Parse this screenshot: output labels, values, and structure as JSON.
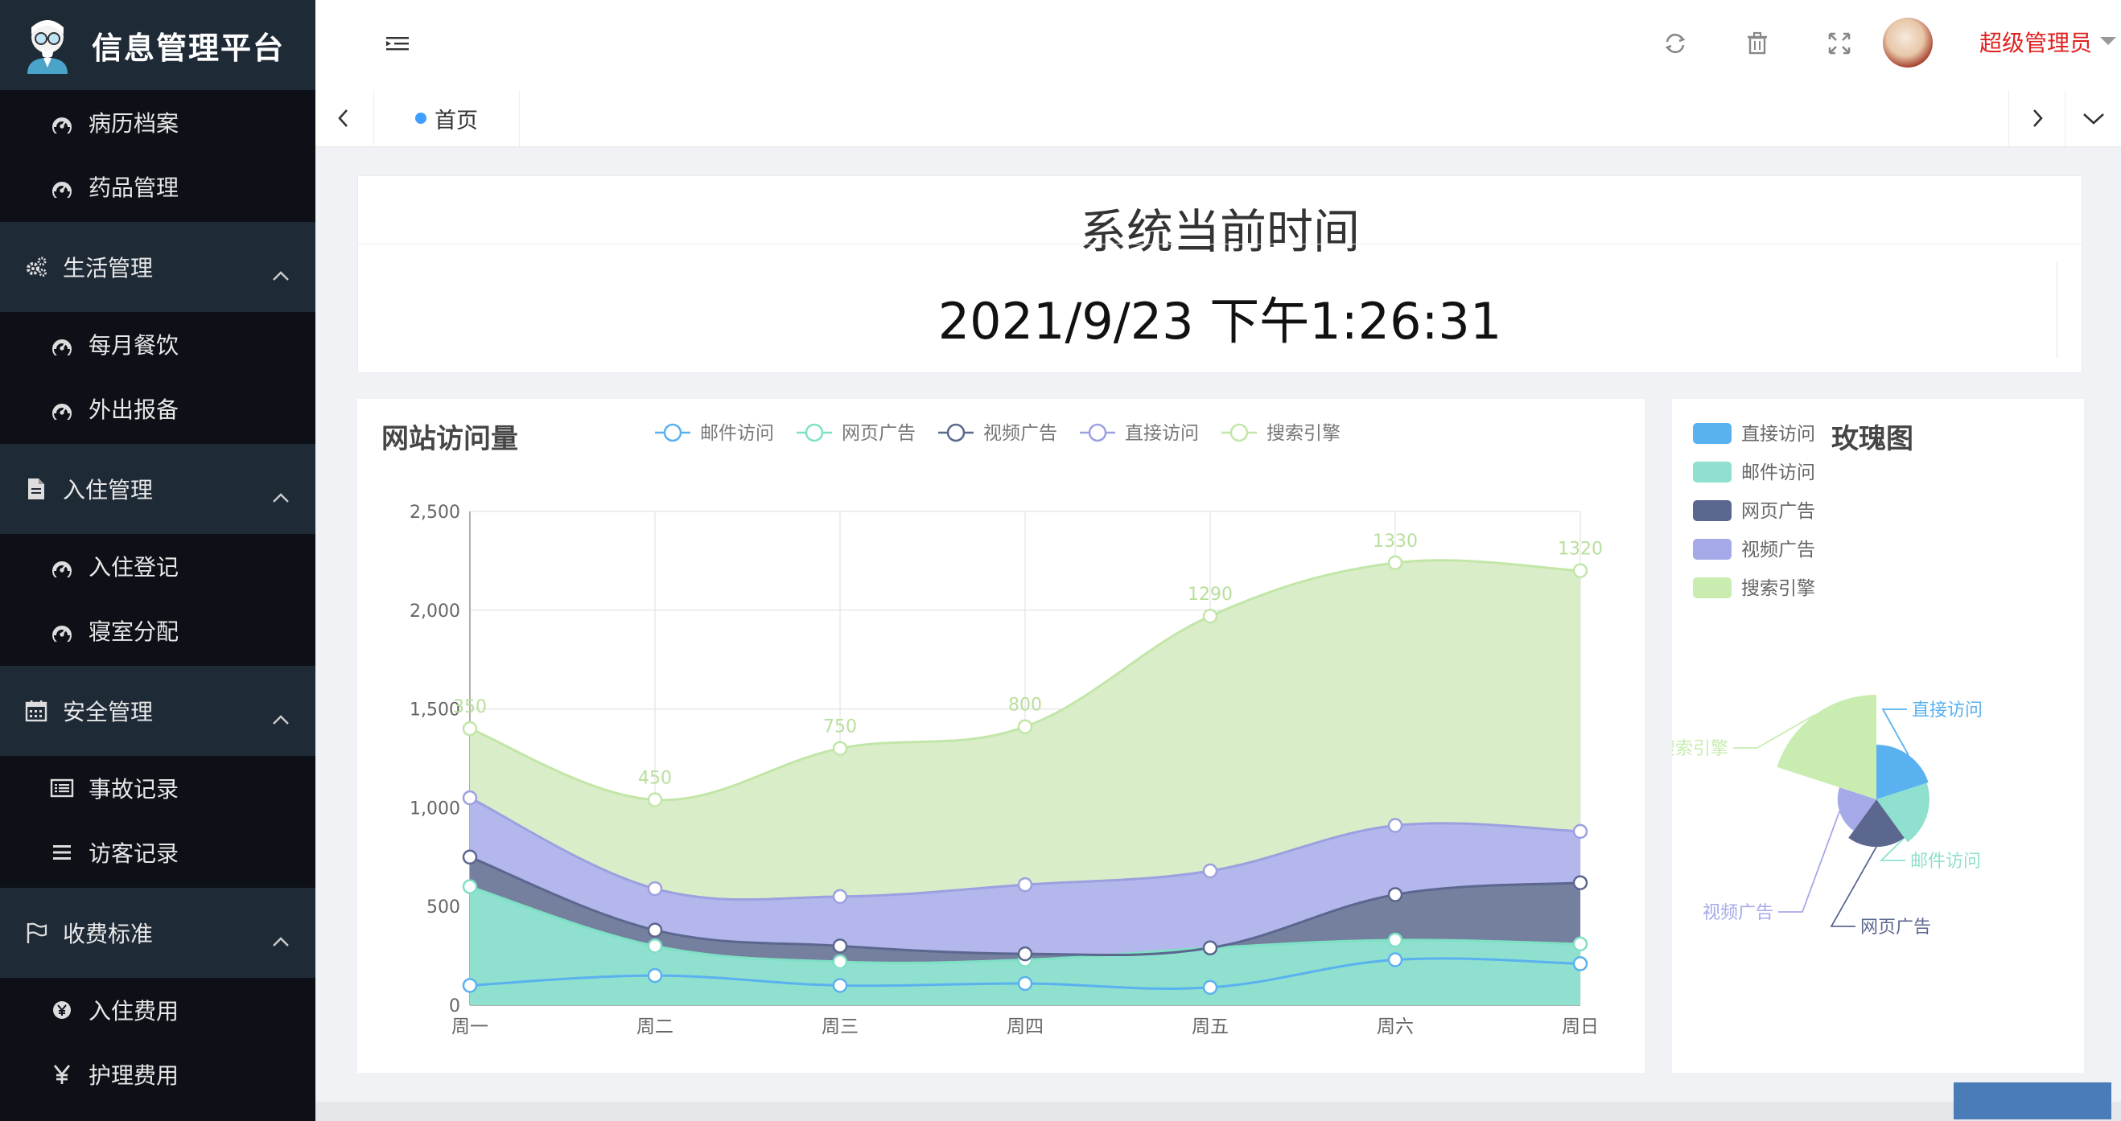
{
  "app": {
    "title": "信息管理平台"
  },
  "sidebar": {
    "items": [
      {
        "label": "病历档案",
        "kind": "sub",
        "icon": "dashboard-icon"
      },
      {
        "label": "药品管理",
        "kind": "sub",
        "icon": "dashboard-icon"
      },
      {
        "label": "生活管理",
        "kind": "group",
        "icon": "gears-icon"
      },
      {
        "label": "每月餐饮",
        "kind": "sub",
        "icon": "dashboard-icon"
      },
      {
        "label": "外出报备",
        "kind": "sub",
        "icon": "dashboard-icon"
      },
      {
        "label": "入住管理",
        "kind": "group",
        "icon": "file-icon"
      },
      {
        "label": "入住登记",
        "kind": "sub",
        "icon": "dashboard-icon"
      },
      {
        "label": "寝室分配",
        "kind": "sub",
        "icon": "dashboard-icon"
      },
      {
        "label": "安全管理",
        "kind": "group",
        "icon": "calendar-icon"
      },
      {
        "label": "事故记录",
        "kind": "sub",
        "icon": "list-alt-icon"
      },
      {
        "label": "访客记录",
        "kind": "sub",
        "icon": "bars-icon"
      },
      {
        "label": "收费标准",
        "kind": "group",
        "icon": "flag-icon"
      },
      {
        "label": "入住费用",
        "kind": "sub",
        "icon": "yen-circle-icon"
      },
      {
        "label": "护理费用",
        "kind": "sub",
        "icon": "yen-icon"
      }
    ]
  },
  "header": {
    "user_name": "超级管理员",
    "icons": [
      "menu-toggle-icon",
      "refresh-icon",
      "trash-icon",
      "fullscreen-icon",
      "avatar"
    ]
  },
  "tabs": {
    "home_label": "首页"
  },
  "clock": {
    "title": "系统当前时间",
    "value": "2021/9/23 下午1:26:31"
  },
  "visits_card": {
    "title": "网站访问量"
  },
  "rose_card": {
    "title": "玫瑰图"
  },
  "chart_data": [
    {
      "type": "area",
      "title": "网站访问量",
      "categories": [
        "周一",
        "周二",
        "周三",
        "周四",
        "周五",
        "周六",
        "周日"
      ],
      "ylim": [
        0,
        2500
      ],
      "yticks": [
        "0",
        "500",
        "1,000",
        "1,500",
        "2,000",
        "2,500"
      ],
      "stacked": true,
      "smooth": true,
      "grid": true,
      "legend_position": "top",
      "series": [
        {
          "name": "邮件访问",
          "values": [
            100,
            150,
            100,
            110,
            90,
            230,
            210
          ],
          "color": "#8fe0cf",
          "line": "#5ab1ef"
        },
        {
          "name": "网页广告",
          "values": [
            500,
            150,
            120,
            120,
            200,
            100,
            100
          ],
          "color": "#8fe0cf",
          "line": "#7fe0c5"
        },
        {
          "name": "视频广告",
          "values": [
            150,
            80,
            80,
            30,
            0,
            230,
            310
          ],
          "color": "#75809f",
          "line": "#5b678e"
        },
        {
          "name": "直接访问",
          "values": [
            300,
            210,
            250,
            350,
            390,
            350,
            260
          ],
          "color": "#b3b7ec",
          "line": "#9ca0e0"
        },
        {
          "name": "搜索引擎",
          "values": [
            350,
            450,
            750,
            800,
            1290,
            1330,
            1320
          ],
          "color": "#d9eec8",
          "line": "#c2e6a8"
        }
      ],
      "data_labels": [
        "350",
        "450",
        "750",
        "800",
        "1290",
        "1330",
        "1320"
      ]
    },
    {
      "type": "pie",
      "title": "玫瑰图",
      "rose": true,
      "legend_position": "top-left",
      "slices": [
        {
          "name": "直接访问",
          "value": 335,
          "color": "#5ab1ef"
        },
        {
          "name": "邮件访问",
          "value": 310,
          "color": "#8fe0cf"
        },
        {
          "name": "网页广告",
          "value": 234,
          "color": "#5b678e"
        },
        {
          "name": "视频广告",
          "value": 135,
          "color": "#a6a9e8"
        },
        {
          "name": "搜索引擎",
          "value": 1548,
          "color": "#c9ecb0"
        }
      ],
      "slice_labels": [
        "直接访问",
        "邮件访问",
        "网页广告",
        "视频广告",
        "搜索引擎"
      ]
    }
  ]
}
